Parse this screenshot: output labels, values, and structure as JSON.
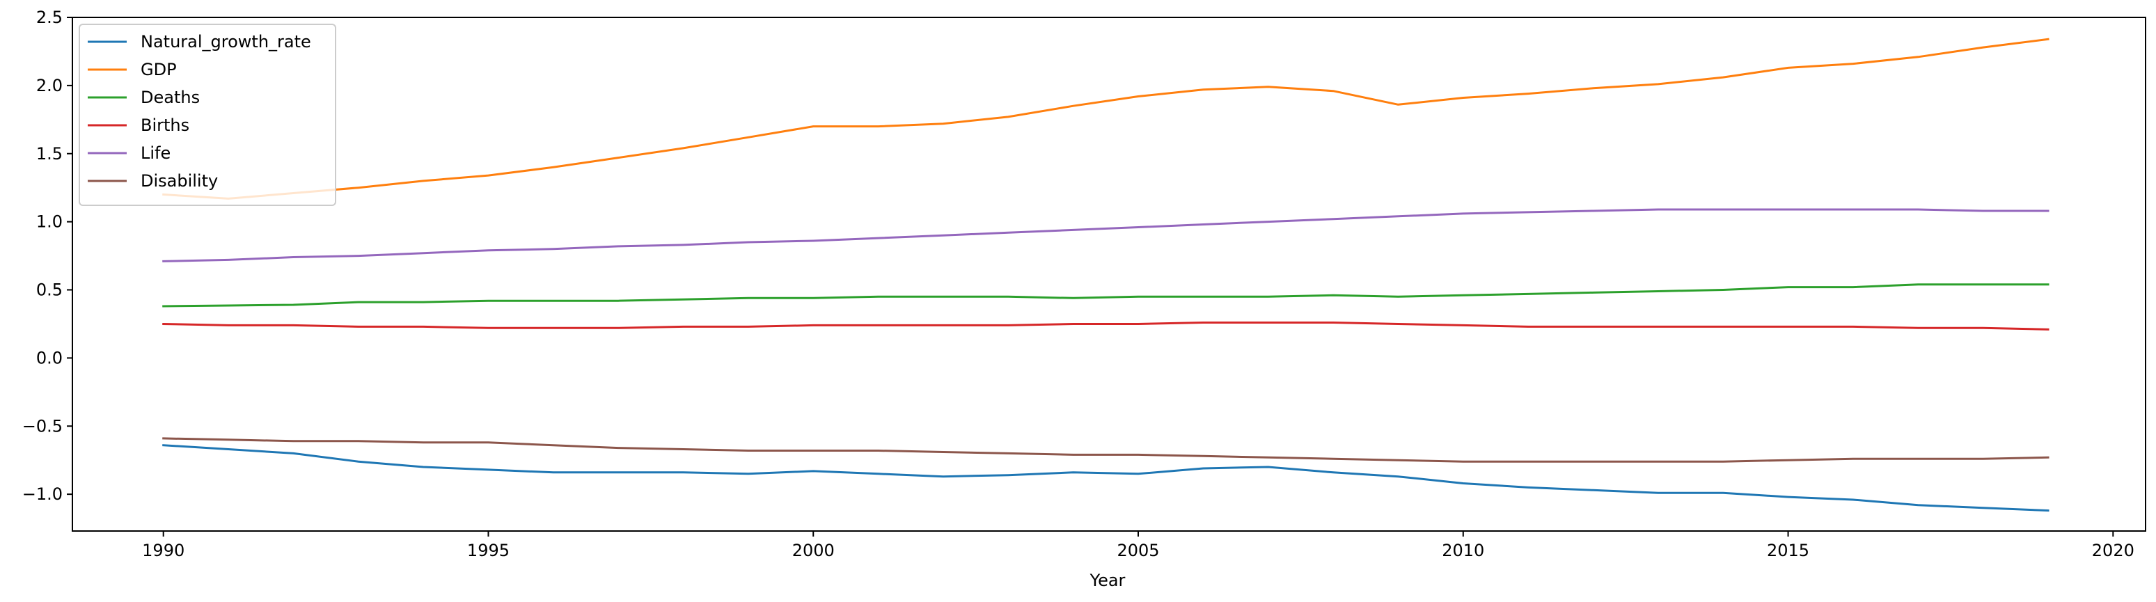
{
  "chart_data": {
    "type": "line",
    "title": "",
    "xlabel": "Year",
    "ylabel": "",
    "xlim": [
      1988.6,
      2020.5
    ],
    "ylim": [
      -1.27,
      2.5
    ],
    "xticks": [
      "1990",
      "1995",
      "2000",
      "2005",
      "2010",
      "2015",
      "2020"
    ],
    "yticks": [
      "2.5",
      "2.0",
      "1.5",
      "1.0",
      "0.5",
      "0.0",
      "−0.5",
      "−1.0"
    ],
    "legend_position": "top-left",
    "grid": false,
    "x": [
      1990,
      1991,
      1992,
      1993,
      1994,
      1995,
      1996,
      1997,
      1998,
      1999,
      2000,
      2001,
      2002,
      2003,
      2004,
      2005,
      2006,
      2007,
      2008,
      2009,
      2010,
      2011,
      2012,
      2013,
      2014,
      2015,
      2016,
      2017,
      2018,
      2019
    ],
    "series": [
      {
        "name": "Natural_growth_rate",
        "color": "#1f77b4",
        "values": [
          -0.64,
          -0.67,
          -0.7,
          -0.76,
          -0.8,
          -0.82,
          -0.84,
          -0.84,
          -0.84,
          -0.85,
          -0.83,
          -0.85,
          -0.87,
          -0.86,
          -0.84,
          -0.85,
          -0.81,
          -0.8,
          -0.84,
          -0.87,
          -0.92,
          -0.95,
          -0.97,
          -0.99,
          -0.99,
          -1.02,
          -1.04,
          -1.08,
          -1.1,
          -1.12
        ]
      },
      {
        "name": "GDP",
        "color": "#ff7f0e",
        "values": [
          1.2,
          1.17,
          1.21,
          1.25,
          1.3,
          1.34,
          1.4,
          1.47,
          1.54,
          1.62,
          1.7,
          1.7,
          1.72,
          1.77,
          1.85,
          1.92,
          1.97,
          1.99,
          1.96,
          1.86,
          1.91,
          1.94,
          1.98,
          2.01,
          2.06,
          2.13,
          2.16,
          2.21,
          2.28,
          2.34
        ]
      },
      {
        "name": "Deaths",
        "color": "#2ca02c",
        "values": [
          0.38,
          0.385,
          0.39,
          0.41,
          0.41,
          0.42,
          0.42,
          0.42,
          0.43,
          0.44,
          0.44,
          0.45,
          0.45,
          0.45,
          0.44,
          0.45,
          0.45,
          0.45,
          0.46,
          0.45,
          0.46,
          0.47,
          0.48,
          0.49,
          0.5,
          0.52,
          0.52,
          0.54,
          0.54,
          0.54
        ]
      },
      {
        "name": "Births",
        "color": "#d62728",
        "values": [
          0.25,
          0.24,
          0.24,
          0.23,
          0.23,
          0.22,
          0.22,
          0.22,
          0.23,
          0.23,
          0.24,
          0.24,
          0.24,
          0.24,
          0.25,
          0.25,
          0.26,
          0.26,
          0.26,
          0.25,
          0.24,
          0.23,
          0.23,
          0.23,
          0.23,
          0.23,
          0.23,
          0.22,
          0.22,
          0.21
        ]
      },
      {
        "name": "Life",
        "color": "#9467bd",
        "values": [
          0.71,
          0.72,
          0.74,
          0.75,
          0.77,
          0.79,
          0.8,
          0.82,
          0.83,
          0.85,
          0.86,
          0.88,
          0.9,
          0.92,
          0.94,
          0.96,
          0.98,
          1.0,
          1.02,
          1.04,
          1.06,
          1.07,
          1.08,
          1.09,
          1.09,
          1.09,
          1.09,
          1.09,
          1.08,
          1.08
        ]
      },
      {
        "name": "Disability",
        "color": "#8c564b",
        "values": [
          -0.59,
          -0.6,
          -0.61,
          -0.61,
          -0.62,
          -0.62,
          -0.64,
          -0.66,
          -0.67,
          -0.68,
          -0.68,
          -0.68,
          -0.69,
          -0.7,
          -0.71,
          -0.71,
          -0.72,
          -0.73,
          -0.74,
          -0.75,
          -0.76,
          -0.76,
          -0.76,
          -0.76,
          -0.76,
          -0.75,
          -0.74,
          -0.74,
          -0.74,
          -0.73
        ]
      }
    ]
  }
}
